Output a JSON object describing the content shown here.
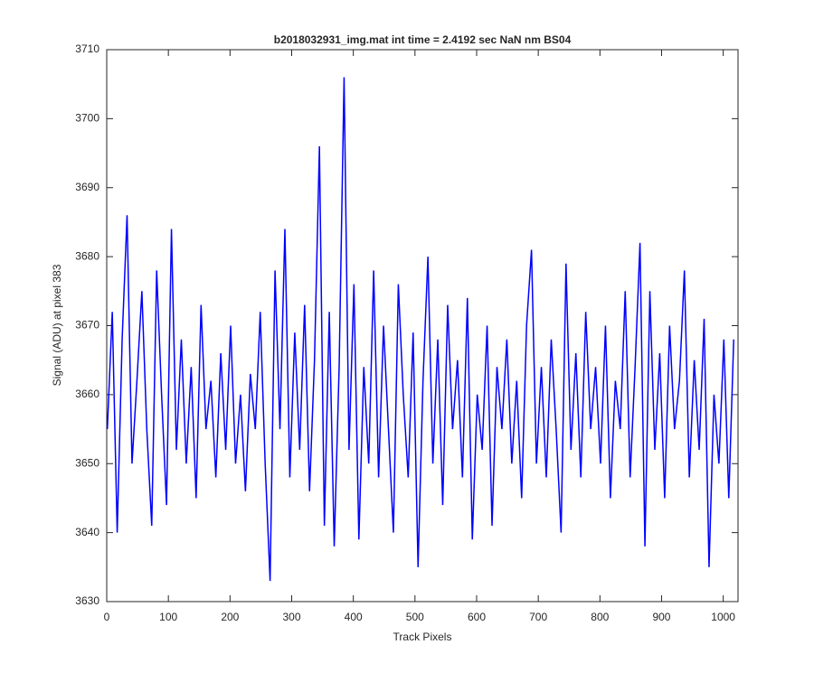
{
  "chart_data": {
    "type": "line",
    "title": "b2018032931_img.mat int time = 2.4192 sec  NaN nm BS04",
    "xlabel": "Track Pixels",
    "ylabel": "Signal (ADU) at pixel 383",
    "x": [
      1,
      9,
      17,
      25,
      33,
      41,
      49,
      57,
      65,
      73,
      81,
      89,
      97,
      105,
      113,
      121,
      129,
      137,
      145,
      153,
      161,
      169,
      177,
      185,
      193,
      201,
      209,
      217,
      225,
      233,
      241,
      249,
      257,
      265,
      273,
      281,
      289,
      297,
      305,
      313,
      321,
      329,
      337,
      345,
      353,
      361,
      369,
      377,
      385,
      393,
      401,
      409,
      417,
      425,
      433,
      441,
      449,
      457,
      465,
      473,
      481,
      489,
      497,
      505,
      513,
      521,
      529,
      537,
      545,
      553,
      561,
      569,
      577,
      585,
      593,
      601,
      609,
      617,
      625,
      633,
      641,
      649,
      657,
      665,
      673,
      681,
      689,
      697,
      705,
      713,
      721,
      729,
      737,
      745,
      753,
      761,
      769,
      777,
      785,
      793,
      801,
      809,
      817,
      825,
      833,
      841,
      849,
      857,
      865,
      873,
      881,
      889,
      897,
      905,
      913,
      921,
      929,
      937,
      945,
      953,
      961,
      969,
      977,
      985,
      993,
      1001,
      1009,
      1017
    ],
    "series": [
      {
        "name": "signal",
        "color": "#0000ff",
        "values": [
          3655,
          3672,
          3640,
          3668,
          3686,
          3650,
          3662,
          3675,
          3655,
          3641,
          3678,
          3660,
          3644,
          3684,
          3652,
          3668,
          3650,
          3664,
          3645,
          3673,
          3655,
          3662,
          3648,
          3666,
          3652,
          3670,
          3650,
          3660,
          3646,
          3663,
          3655,
          3672,
          3650,
          3633,
          3678,
          3655,
          3684,
          3648,
          3669,
          3652,
          3673,
          3646,
          3665,
          3696,
          3641,
          3672,
          3638,
          3664,
          3706,
          3652,
          3676,
          3639,
          3664,
          3650,
          3678,
          3648,
          3670,
          3655,
          3640,
          3676,
          3660,
          3648,
          3669,
          3635,
          3662,
          3680,
          3650,
          3668,
          3644,
          3673,
          3655,
          3665,
          3648,
          3674,
          3639,
          3660,
          3652,
          3670,
          3641,
          3664,
          3655,
          3668,
          3650,
          3662,
          3645,
          3670,
          3681,
          3650,
          3664,
          3648,
          3668,
          3655,
          3640,
          3679,
          3652,
          3666,
          3648,
          3672,
          3655,
          3664,
          3650,
          3670,
          3645,
          3662,
          3655,
          3675,
          3648,
          3664,
          3682,
          3638,
          3675,
          3652,
          3666,
          3645,
          3670,
          3655,
          3662,
          3678,
          3648,
          3665,
          3652,
          3671,
          3635,
          3660,
          3650,
          3668,
          3645,
          3668
        ]
      }
    ],
    "xlim": [
      0,
      1024
    ],
    "xticks": [
      0,
      100,
      200,
      300,
      400,
      500,
      600,
      700,
      800,
      900,
      1000
    ],
    "ylim": [
      3630,
      3710
    ],
    "yticks": [
      3630,
      3640,
      3650,
      3660,
      3670,
      3680,
      3690,
      3700,
      3710
    ]
  }
}
